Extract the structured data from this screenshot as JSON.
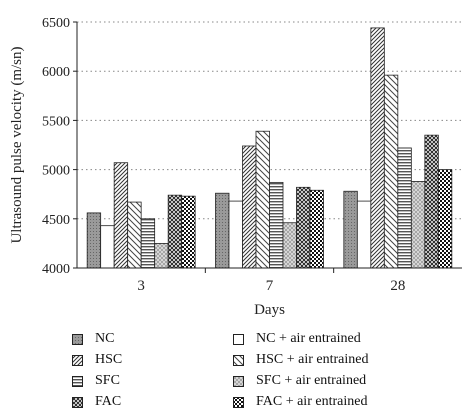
{
  "chart_data": {
    "type": "bar",
    "xlabel": "Days",
    "ylabel": "Ultrasound pulse velocity (m/sn)",
    "ylim": [
      4000,
      6500
    ],
    "yticks": [
      "4000",
      "4500",
      "5000",
      "5500",
      "6000",
      "6500"
    ],
    "grid": "horizontal dotted",
    "legend_position": "bottom",
    "categories": [
      "3",
      "7",
      "28"
    ],
    "series": [
      {
        "name": "NC",
        "pattern": "dots-gray",
        "values": [
          4560,
          4760,
          4780
        ]
      },
      {
        "name": "NC + air entrained",
        "pattern": "white",
        "values": [
          4430,
          4680,
          4680
        ]
      },
      {
        "name": "HSC",
        "pattern": "diag-dense",
        "values": [
          5070,
          5240,
          6440
        ]
      },
      {
        "name": "HSC + air entrained",
        "pattern": "diag-sparse",
        "values": [
          4670,
          5390,
          5960
        ]
      },
      {
        "name": "SFC",
        "pattern": "horizontal",
        "values": [
          4500,
          4870,
          5220
        ]
      },
      {
        "name": "SFC + air entrained",
        "pattern": "grid-light",
        "values": [
          4250,
          4460,
          4880
        ]
      },
      {
        "name": "FAC",
        "pattern": "crosshatch",
        "values": [
          4740,
          4820,
          5350
        ]
      },
      {
        "name": "FAC + air entrained",
        "pattern": "checker",
        "values": [
          4730,
          4790,
          5000
        ]
      }
    ]
  }
}
